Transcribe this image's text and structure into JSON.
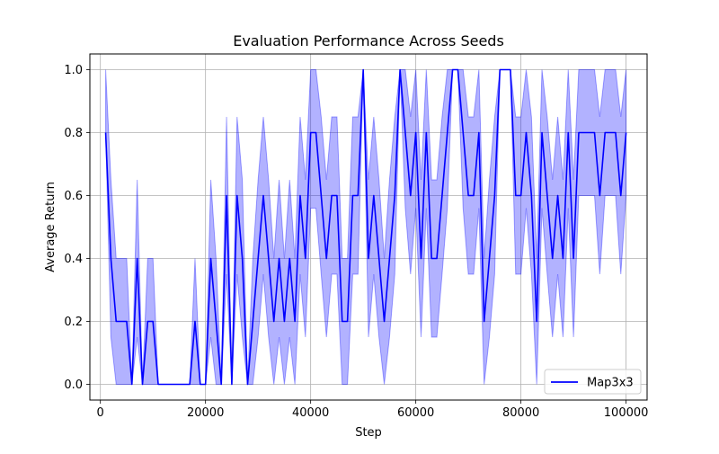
{
  "chart_data": {
    "type": "line",
    "title": "Evaluation Performance Across Seeds",
    "xlabel": "Step",
    "ylabel": "Average Return",
    "xlim": [
      -2000,
      104000
    ],
    "ylim": [
      -0.05,
      1.05
    ],
    "xticks": [
      0,
      20000,
      40000,
      60000,
      80000,
      100000
    ],
    "xtick_labels": [
      "0",
      "20000",
      "40000",
      "60000",
      "80000",
      "100000"
    ],
    "yticks": [
      0.0,
      0.2,
      0.4,
      0.6,
      0.8,
      1.0
    ],
    "ytick_labels": [
      "0.0",
      "0.2",
      "0.4",
      "0.6",
      "0.8",
      "1.0"
    ],
    "grid": true,
    "legend_position": "lower-right",
    "colors": {
      "line": "#0000ff",
      "band": "#0000ff",
      "band_opacity": 0.3,
      "grid": "#b0b0b0"
    },
    "series": [
      {
        "name": "Map3x3",
        "x": [
          1000,
          2000,
          3000,
          4000,
          5000,
          6000,
          7000,
          8000,
          9000,
          10000,
          11000,
          12000,
          13000,
          14000,
          15000,
          16000,
          17000,
          18000,
          19000,
          20000,
          21000,
          22000,
          23000,
          24000,
          25000,
          26000,
          27000,
          28000,
          29000,
          30000,
          31000,
          32000,
          33000,
          34000,
          35000,
          36000,
          37000,
          38000,
          39000,
          40000,
          41000,
          42000,
          43000,
          44000,
          45000,
          46000,
          47000,
          48000,
          49000,
          50000,
          51000,
          52000,
          53000,
          54000,
          55000,
          56000,
          57000,
          58000,
          59000,
          60000,
          61000,
          62000,
          63000,
          64000,
          65000,
          66000,
          67000,
          68000,
          69000,
          70000,
          71000,
          72000,
          73000,
          74000,
          75000,
          76000,
          77000,
          78000,
          79000,
          80000,
          81000,
          82000,
          83000,
          84000,
          85000,
          86000,
          87000,
          88000,
          89000,
          90000,
          91000,
          92000,
          93000,
          94000,
          95000,
          96000,
          97000,
          98000,
          99000,
          100000
        ],
        "values": [
          0.8,
          0.4,
          0.2,
          0.2,
          0.2,
          0.0,
          0.4,
          0.0,
          0.2,
          0.2,
          0.0,
          0.0,
          0.0,
          0.0,
          0.0,
          0.0,
          0.0,
          0.2,
          0.0,
          0.0,
          0.4,
          0.2,
          0.0,
          0.6,
          0.0,
          0.6,
          0.4,
          0.0,
          0.2,
          0.4,
          0.6,
          0.4,
          0.2,
          0.4,
          0.2,
          0.4,
          0.2,
          0.6,
          0.4,
          0.8,
          0.8,
          0.6,
          0.4,
          0.6,
          0.6,
          0.2,
          0.2,
          0.6,
          0.6,
          1.0,
          0.4,
          0.6,
          0.4,
          0.2,
          0.4,
          0.6,
          1.0,
          0.8,
          0.6,
          0.8,
          0.4,
          0.8,
          0.4,
          0.4,
          0.6,
          0.8,
          1.0,
          1.0,
          0.8,
          0.6,
          0.6,
          0.8,
          0.2,
          0.4,
          0.6,
          1.0,
          1.0,
          1.0,
          0.6,
          0.6,
          0.8,
          0.6,
          0.2,
          0.8,
          0.6,
          0.4,
          0.6,
          0.4,
          0.8,
          0.4,
          0.8,
          0.8,
          0.8,
          0.8,
          0.6,
          0.8,
          0.8,
          0.8,
          0.6,
          0.8
        ],
        "lower": [
          0.8,
          0.15,
          0.0,
          0.0,
          0.0,
          0.0,
          0.15,
          0.0,
          0.0,
          0.0,
          0.0,
          0.0,
          0.0,
          0.0,
          0.0,
          0.0,
          0.0,
          0.0,
          0.0,
          0.0,
          0.15,
          0.0,
          0.0,
          0.35,
          0.0,
          0.35,
          0.15,
          0.0,
          0.0,
          0.15,
          0.35,
          0.15,
          0.0,
          0.15,
          0.0,
          0.15,
          0.0,
          0.35,
          0.15,
          0.56,
          0.56,
          0.35,
          0.15,
          0.35,
          0.35,
          0.0,
          0.0,
          0.35,
          0.35,
          1.0,
          0.15,
          0.35,
          0.15,
          0.0,
          0.15,
          0.35,
          1.0,
          0.56,
          0.35,
          0.56,
          0.15,
          0.56,
          0.15,
          0.15,
          0.35,
          0.56,
          1.0,
          1.0,
          0.56,
          0.35,
          0.35,
          0.56,
          0.0,
          0.15,
          0.35,
          1.0,
          1.0,
          1.0,
          0.35,
          0.35,
          0.56,
          0.35,
          0.0,
          0.56,
          0.35,
          0.15,
          0.35,
          0.15,
          0.56,
          0.15,
          0.6,
          0.6,
          0.6,
          0.6,
          0.35,
          0.6,
          0.6,
          0.6,
          0.35,
          0.6
        ],
        "upper": [
          1.0,
          0.65,
          0.4,
          0.4,
          0.4,
          0.0,
          0.65,
          0.0,
          0.4,
          0.4,
          0.0,
          0.0,
          0.0,
          0.0,
          0.0,
          0.0,
          0.0,
          0.4,
          0.0,
          0.0,
          0.65,
          0.4,
          0.0,
          0.85,
          0.0,
          0.85,
          0.65,
          0.0,
          0.4,
          0.65,
          0.85,
          0.65,
          0.4,
          0.65,
          0.4,
          0.65,
          0.4,
          0.85,
          0.65,
          1.0,
          1.0,
          0.85,
          0.65,
          0.85,
          0.85,
          0.4,
          0.4,
          0.85,
          0.85,
          1.0,
          0.65,
          0.85,
          0.65,
          0.4,
          0.65,
          0.85,
          1.0,
          1.0,
          0.85,
          1.0,
          0.65,
          1.0,
          0.65,
          0.65,
          0.85,
          1.0,
          1.0,
          1.0,
          1.0,
          0.85,
          0.85,
          1.0,
          0.4,
          0.65,
          0.85,
          1.0,
          1.0,
          1.0,
          0.85,
          0.85,
          1.0,
          0.85,
          0.4,
          1.0,
          0.85,
          0.65,
          0.85,
          0.65,
          1.0,
          0.65,
          1.0,
          1.0,
          1.0,
          1.0,
          0.85,
          1.0,
          1.0,
          1.0,
          0.85,
          1.0
        ]
      }
    ]
  }
}
